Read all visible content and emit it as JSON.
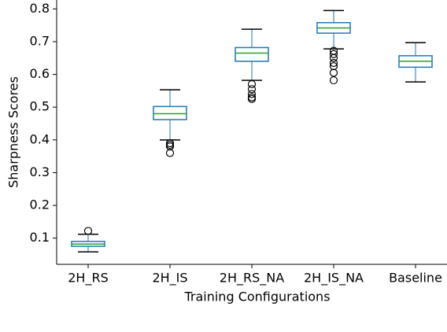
{
  "chart_data": {
    "type": "box",
    "xlabel": "Training Configurations",
    "ylabel": "Sharpness Scores",
    "categories": [
      "2H_RS",
      "2H_IS",
      "2H_RS_NA",
      "2H_IS_NA",
      "Baseline"
    ],
    "boxes": [
      {
        "whislo": 0.058,
        "q1": 0.075,
        "med": 0.082,
        "q3": 0.09,
        "whishi": 0.112,
        "fliers": [
          0.122
        ]
      },
      {
        "whislo": 0.4,
        "q1": 0.462,
        "med": 0.48,
        "q3": 0.502,
        "whishi": 0.553,
        "fliers": [
          0.36,
          0.38,
          0.385,
          0.39
        ]
      },
      {
        "whislo": 0.582,
        "q1": 0.64,
        "med": 0.665,
        "q3": 0.682,
        "whishi": 0.738,
        "fliers": [
          0.525,
          0.53,
          0.54,
          0.555,
          0.57
        ]
      },
      {
        "whislo": 0.678,
        "q1": 0.726,
        "med": 0.742,
        "q3": 0.758,
        "whishi": 0.795,
        "fliers": [
          0.582,
          0.605,
          0.625,
          0.635,
          0.65,
          0.662,
          0.672
        ]
      },
      {
        "whislo": 0.577,
        "q1": 0.622,
        "med": 0.64,
        "q3": 0.657,
        "whishi": 0.697,
        "fliers": []
      }
    ],
    "box_color": "#1f77b4",
    "median_color": "#2ca02c",
    "cap_color": "#000000",
    "ylim": [
      0.02,
      0.82
    ],
    "yticks": [
      0.1,
      0.2,
      0.3,
      0.4,
      0.5,
      0.6,
      0.7,
      0.8
    ]
  }
}
